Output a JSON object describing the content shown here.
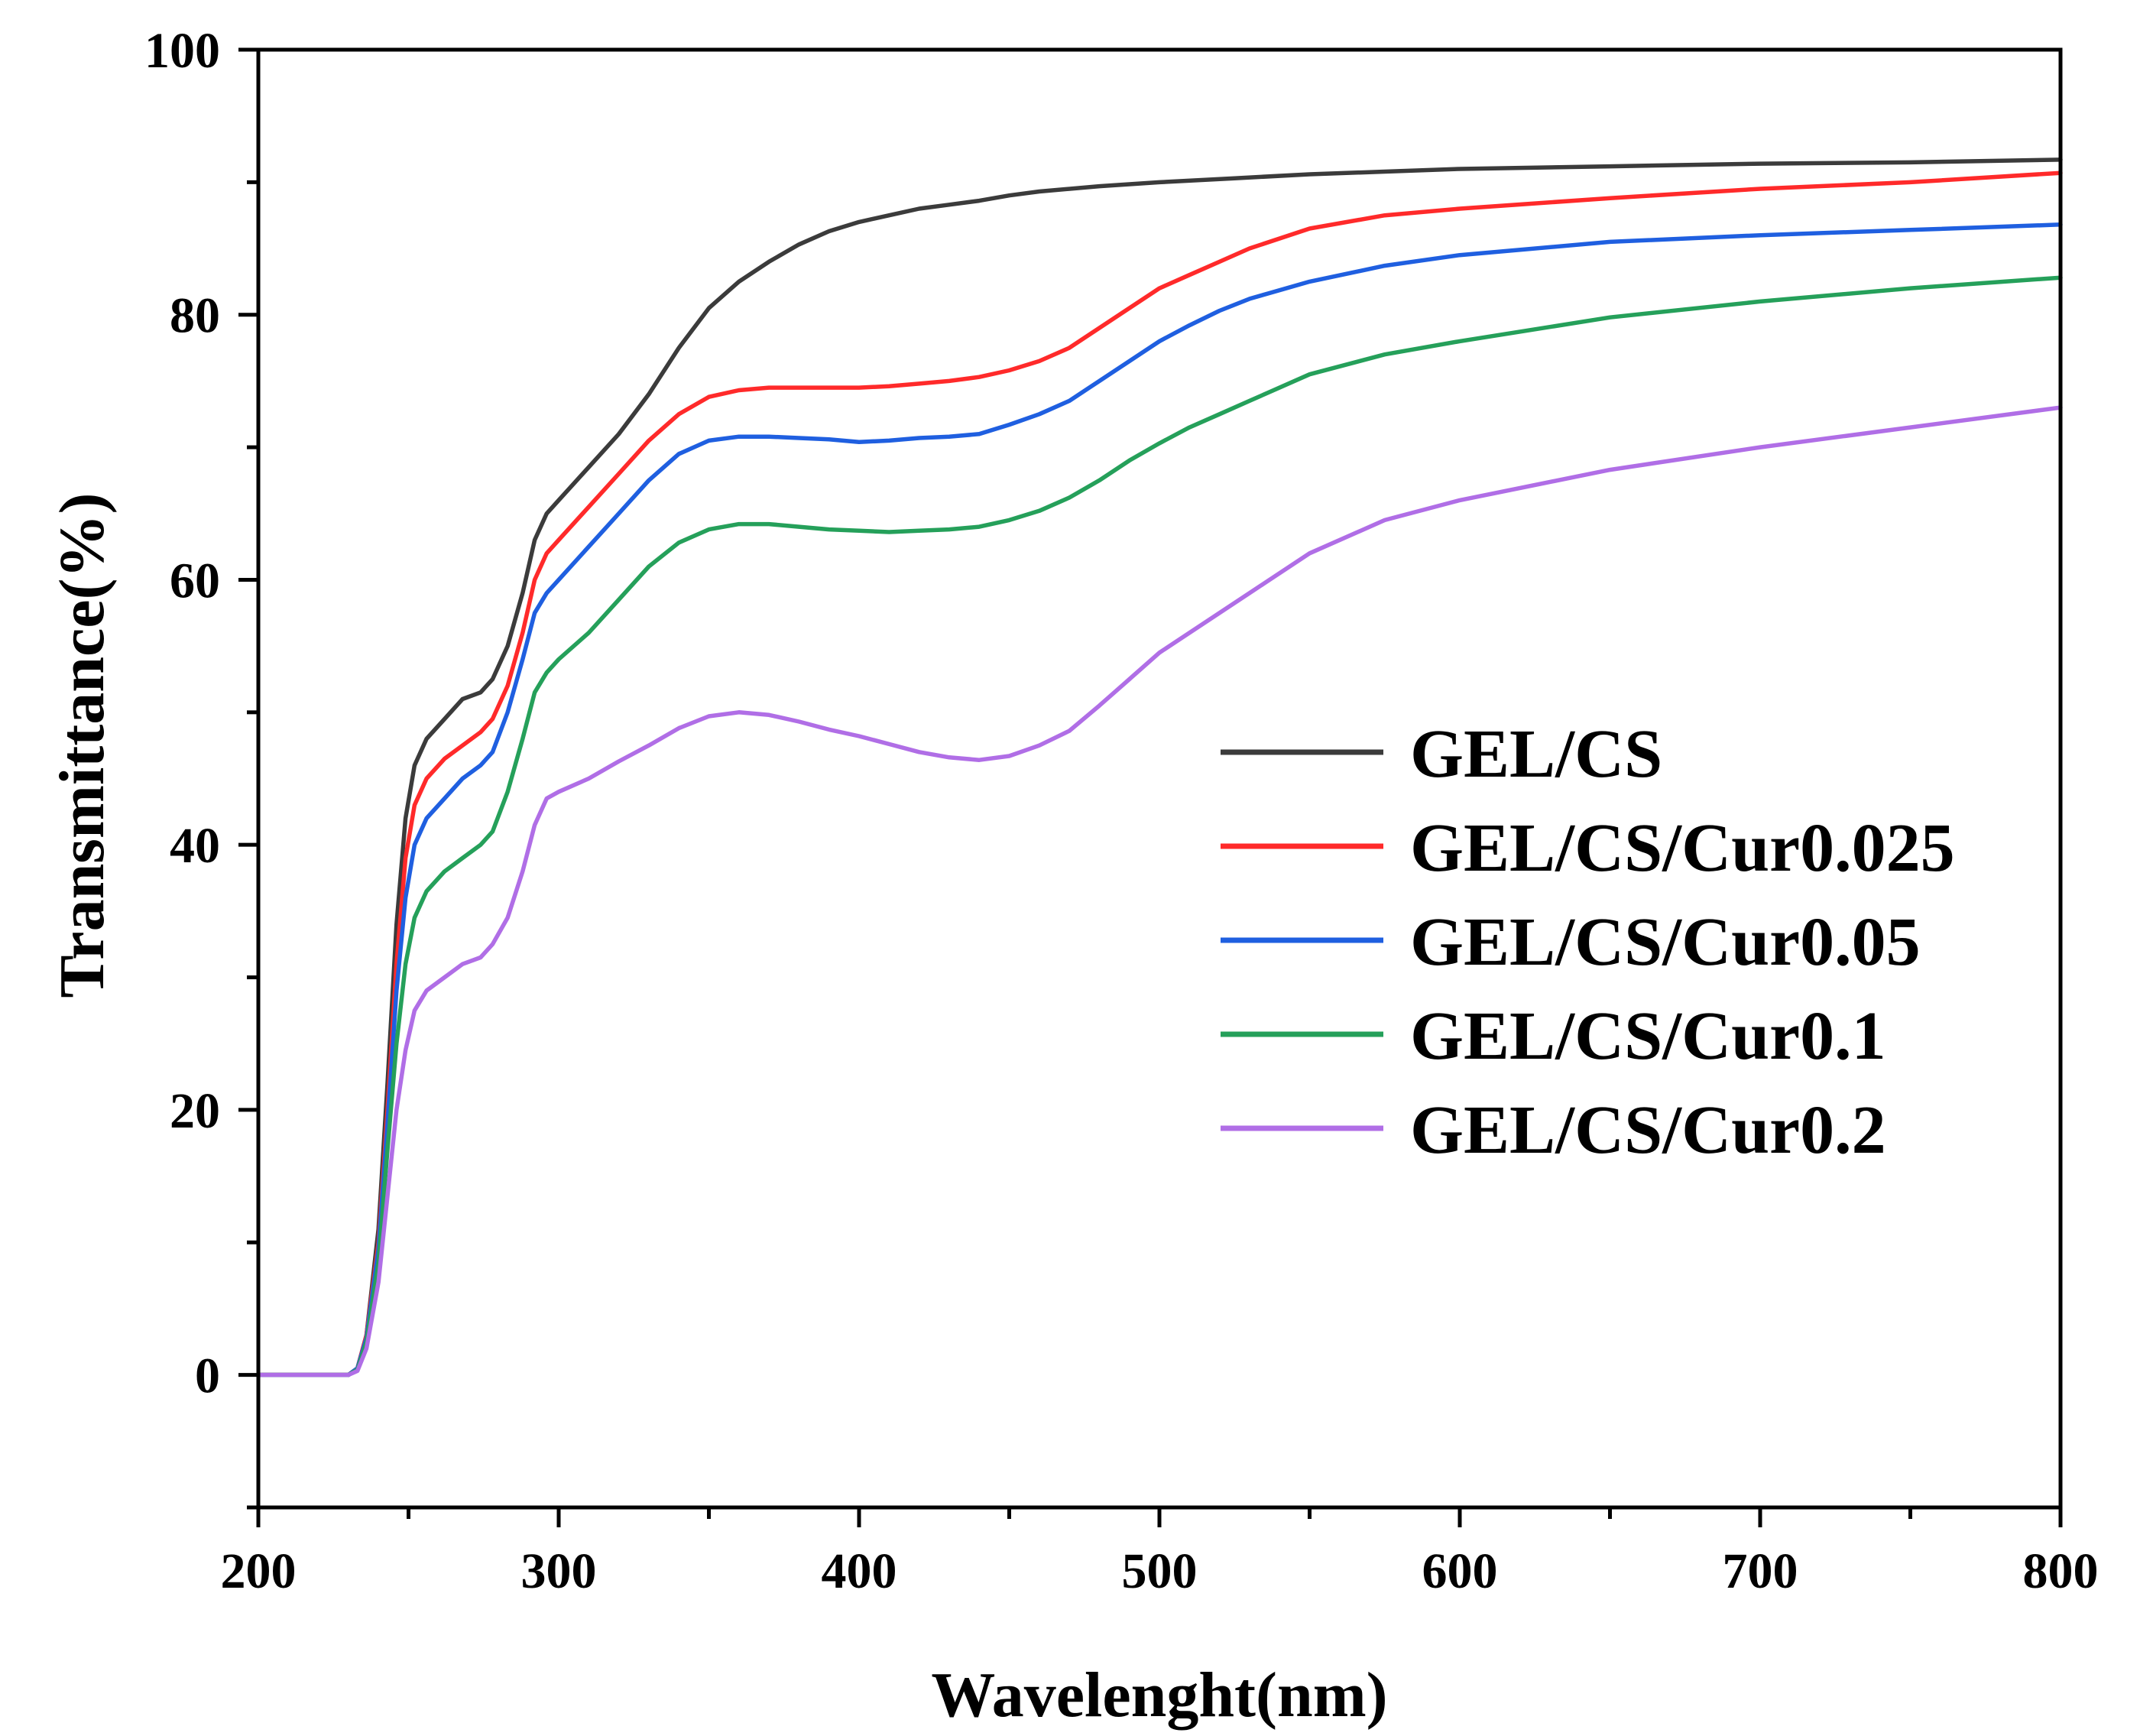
{
  "chart_data": {
    "type": "line",
    "xlabel": "Wavelenght(nm)",
    "ylabel": "Transmittance(%)",
    "xlim": [
      200,
      800
    ],
    "ylim": [
      -10,
      100
    ],
    "x_ticks": [
      200,
      300,
      400,
      500,
      600,
      700,
      800
    ],
    "y_ticks": [
      0,
      20,
      40,
      60,
      80,
      100
    ],
    "x_minor_step": 50,
    "y_minor_step": 10,
    "grid": false,
    "legend_position": "center-right",
    "series": [
      {
        "name": "GEL/CS",
        "color": "#3b3b3b",
        "x": [
          200,
          225,
          230,
          233,
          236,
          240,
          243,
          246,
          249,
          252,
          256,
          262,
          268,
          274,
          278,
          283,
          288,
          292,
          296,
          300,
          310,
          320,
          330,
          340,
          350,
          360,
          370,
          380,
          390,
          400,
          410,
          420,
          430,
          440,
          450,
          460,
          480,
          500,
          525,
          550,
          575,
          600,
          650,
          700,
          750,
          800
        ],
        "y": [
          0,
          0,
          0,
          0.5,
          3,
          11,
          22,
          34,
          42,
          46,
          48,
          49.5,
          51,
          51.5,
          52.5,
          55,
          59,
          63,
          65,
          66,
          68.5,
          71,
          74,
          77.5,
          80.5,
          82.5,
          84,
          85.3,
          86.3,
          87,
          87.5,
          88,
          88.3,
          88.6,
          89,
          89.3,
          89.7,
          90,
          90.3,
          90.6,
          90.8,
          91,
          91.2,
          91.4,
          91.5,
          91.7
        ]
      },
      {
        "name": "GEL/CS/Cur0.025",
        "color": "#ff2a2a",
        "x": [
          200,
          225,
          230,
          233,
          236,
          240,
          243,
          246,
          249,
          252,
          256,
          262,
          268,
          274,
          278,
          283,
          288,
          292,
          296,
          300,
          310,
          320,
          330,
          340,
          350,
          360,
          370,
          380,
          390,
          400,
          410,
          420,
          430,
          440,
          450,
          460,
          470,
          480,
          490,
          500,
          510,
          520,
          530,
          550,
          575,
          600,
          650,
          700,
          750,
          800
        ],
        "y": [
          0,
          0,
          0,
          0.5,
          3,
          10,
          20,
          31,
          39,
          43,
          45,
          46.5,
          47.5,
          48.5,
          49.5,
          52,
          56,
          60,
          62,
          63,
          65.5,
          68,
          70.5,
          72.5,
          73.8,
          74.3,
          74.5,
          74.5,
          74.5,
          74.5,
          74.6,
          74.8,
          75,
          75.3,
          75.8,
          76.5,
          77.5,
          79,
          80.5,
          82,
          83,
          84,
          85,
          86.5,
          87.5,
          88,
          88.8,
          89.5,
          90,
          90.7
        ]
      },
      {
        "name": "GEL/CS/Cur0.05",
        "color": "#1f5fe0",
        "x": [
          200,
          225,
          230,
          233,
          236,
          240,
          243,
          246,
          249,
          252,
          256,
          262,
          268,
          274,
          278,
          283,
          288,
          292,
          296,
          300,
          310,
          320,
          330,
          340,
          350,
          360,
          370,
          380,
          390,
          400,
          410,
          420,
          430,
          440,
          450,
          460,
          470,
          480,
          490,
          500,
          510,
          520,
          530,
          550,
          575,
          600,
          650,
          700,
          750,
          800
        ],
        "y": [
          0,
          0,
          0,
          0.5,
          2.8,
          9.5,
          19,
          29,
          36,
          40,
          42,
          43.5,
          45,
          46,
          47,
          50,
          54,
          57.5,
          59,
          60,
          62.5,
          65,
          67.5,
          69.5,
          70.5,
          70.8,
          70.8,
          70.7,
          70.6,
          70.4,
          70.5,
          70.7,
          70.8,
          71,
          71.7,
          72.5,
          73.5,
          75,
          76.5,
          78,
          79.2,
          80.3,
          81.2,
          82.5,
          83.7,
          84.5,
          85.5,
          86,
          86.4,
          86.8
        ]
      },
      {
        "name": "GEL/CS/Cur0.1",
        "color": "#25a05a",
        "x": [
          200,
          225,
          230,
          233,
          236,
          240,
          243,
          246,
          249,
          252,
          256,
          262,
          268,
          274,
          278,
          283,
          288,
          292,
          296,
          300,
          310,
          320,
          330,
          340,
          350,
          360,
          370,
          380,
          390,
          400,
          410,
          420,
          430,
          440,
          450,
          460,
          470,
          480,
          490,
          500,
          510,
          520,
          530,
          550,
          575,
          600,
          650,
          700,
          750,
          800
        ],
        "y": [
          0,
          0,
          0,
          0.4,
          2.5,
          8.5,
          17,
          25,
          31,
          34.5,
          36.5,
          38,
          39,
          40,
          41,
          44,
          48,
          51.5,
          53,
          54,
          56,
          58.5,
          61,
          62.8,
          63.8,
          64.2,
          64.2,
          64,
          63.8,
          63.7,
          63.6,
          63.7,
          63.8,
          64,
          64.5,
          65.2,
          66.2,
          67.5,
          69,
          70.3,
          71.5,
          72.5,
          73.5,
          75.5,
          77,
          78,
          79.8,
          81,
          82,
          82.8
        ]
      },
      {
        "name": "GEL/CS/Cur0.2",
        "color": "#b06ee6",
        "x": [
          200,
          225,
          230,
          233,
          236,
          240,
          243,
          246,
          249,
          252,
          256,
          262,
          268,
          274,
          278,
          283,
          288,
          292,
          296,
          300,
          310,
          320,
          330,
          340,
          350,
          360,
          370,
          380,
          390,
          400,
          410,
          420,
          430,
          440,
          450,
          460,
          470,
          480,
          490,
          500,
          510,
          520,
          530,
          550,
          575,
          600,
          650,
          700,
          750,
          800
        ],
        "y": [
          0,
          0,
          0,
          0.3,
          2,
          7,
          13.5,
          20,
          24.5,
          27.5,
          29,
          30,
          31,
          31.5,
          32.5,
          34.5,
          38,
          41.5,
          43.5,
          44,
          45,
          46.3,
          47.5,
          48.8,
          49.7,
          50,
          49.8,
          49.3,
          48.7,
          48.2,
          47.6,
          47,
          46.6,
          46.4,
          46.7,
          47.5,
          48.6,
          50.5,
          52.5,
          54.5,
          56,
          57.5,
          59,
          62,
          64.5,
          66,
          68.3,
          70,
          71.5,
          73
        ]
      }
    ]
  }
}
